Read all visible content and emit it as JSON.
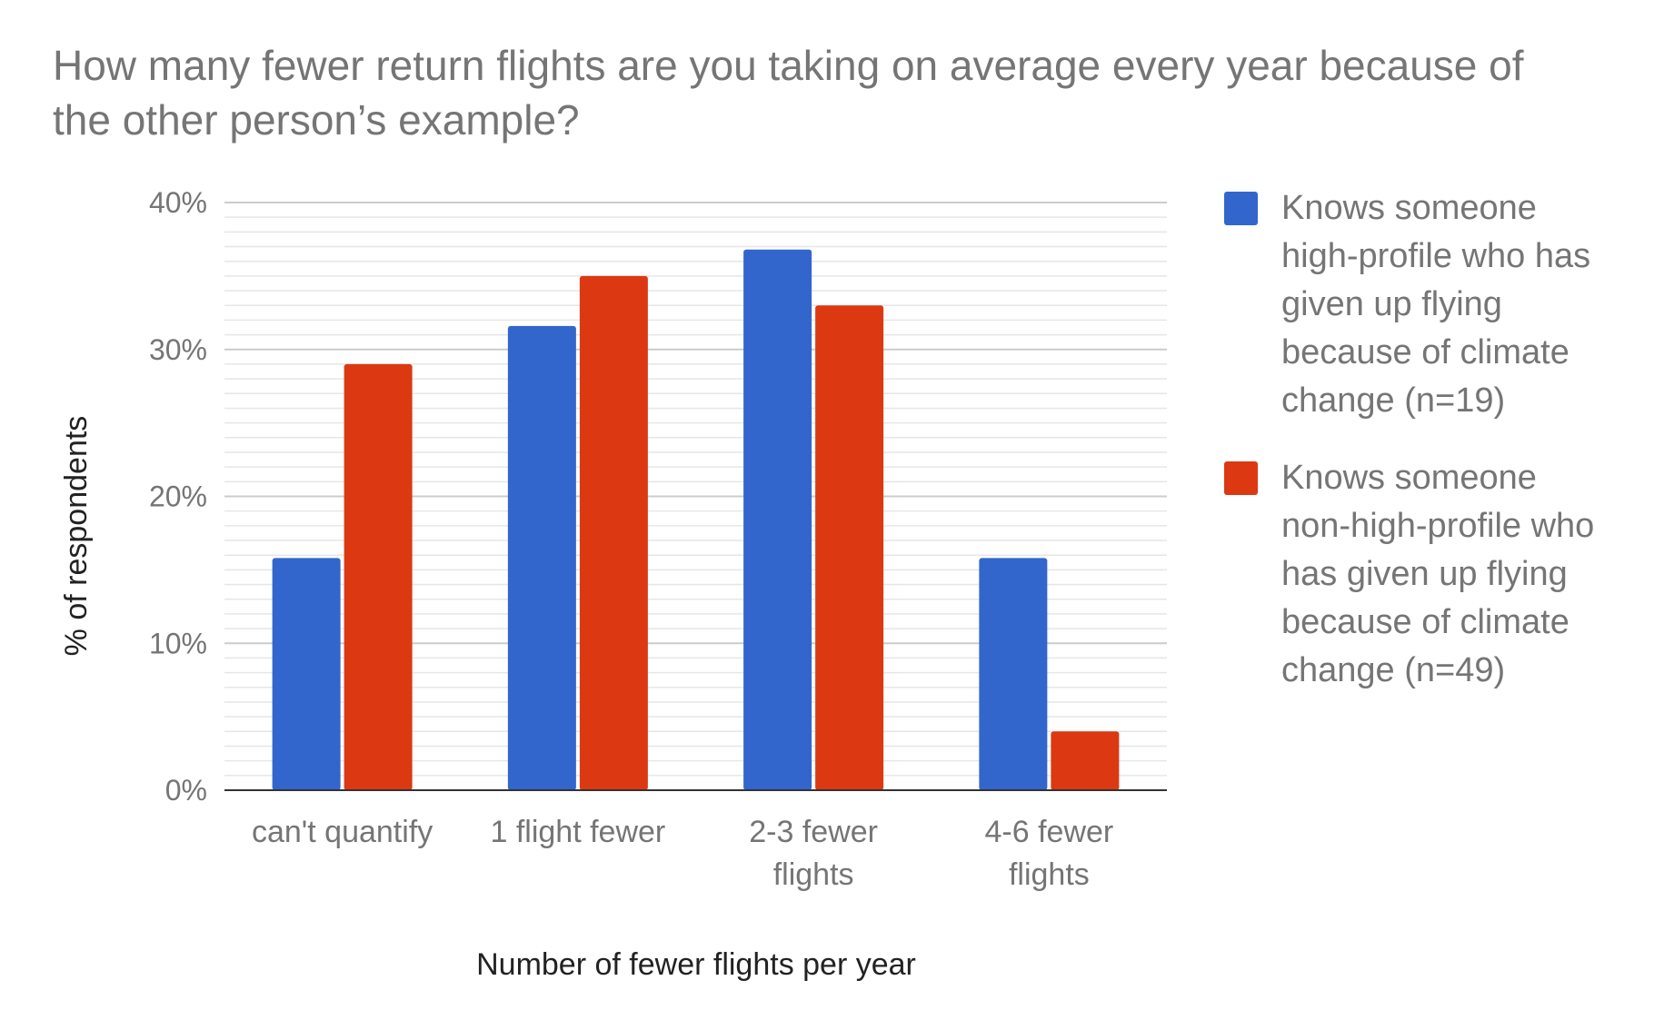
{
  "chart_data": {
    "type": "bar",
    "title_lines": [
      "How many fewer return flights are you taking on average every year because of",
      "the other person’s example?"
    ],
    "xlabel": "Number of fewer flights per year",
    "ylabel": "% of respondents",
    "ylim": [
      0,
      40
    ],
    "y_ticks": [
      0,
      10,
      20,
      30,
      40
    ],
    "y_tick_labels": [
      "0%",
      "10%",
      "20%",
      "30%",
      "40%"
    ],
    "categories": [
      [
        "can't quantify"
      ],
      [
        "1 flight fewer"
      ],
      [
        "2-3 fewer",
        "flights"
      ],
      [
        "4-6 fewer",
        "flights"
      ]
    ],
    "series": [
      {
        "name_lines": [
          "Knows someone",
          "high-profile who has",
          "given up flying",
          "because of climate",
          "change (n=19)"
        ],
        "color": "#3366cc",
        "values": [
          15.8,
          31.6,
          36.8,
          15.8
        ]
      },
      {
        "name_lines": [
          "Knows someone",
          "non-high-profile who",
          "has given up flying",
          "because of climate",
          "change (n=49)"
        ],
        "color": "#dc3912",
        "values": [
          29.0,
          35.0,
          33.0,
          4.0
        ]
      }
    ],
    "grid": true,
    "legend": "right"
  }
}
